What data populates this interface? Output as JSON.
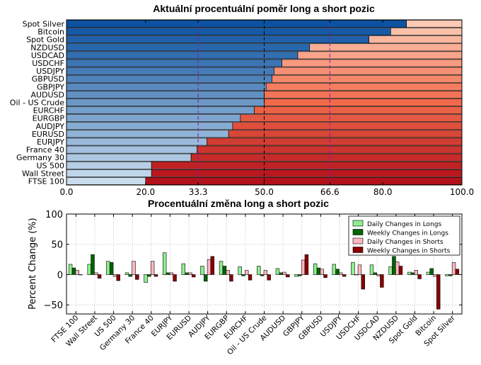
{
  "chart_data": [
    {
      "type": "bar",
      "orientation": "horizontal",
      "stacked": true,
      "title": "Aktuální procentuální poměr long a short pozic",
      "categories": [
        "Spot Silver",
        "Bitcoin",
        "Spot Gold",
        "NZDUSD",
        "USDCAD",
        "USDCHF",
        "USDJPY",
        "GBPUSD",
        "GBPJPY",
        "AUDUSD",
        "Oil - US Crude",
        "EURCHF",
        "EURGBP",
        "AUDJPY",
        "EURUSD",
        "EURJPY",
        "France 40",
        "Germany 30",
        "US 500",
        "Wall Street",
        "FTSE 100"
      ],
      "long_values": [
        86.0,
        82.0,
        76.5,
        61.5,
        58.5,
        54.5,
        52.5,
        52.0,
        50.5,
        50.0,
        50.0,
        47.5,
        44.0,
        42.0,
        41.0,
        35.5,
        33.0,
        31.5,
        21.5,
        21.5,
        20.0
      ],
      "xlim": [
        0,
        100
      ],
      "xticks": [
        "0.0",
        "20.0",
        "33.3",
        "50.0",
        "66.6",
        "80.0",
        "100.0"
      ],
      "reference_lines": [
        "33.3",
        "50.0",
        "66.6"
      ],
      "colors": {
        "long_dark": "#0d52a0",
        "long_light": "#c8dcee",
        "short_dark": "#b2101a",
        "short_mid": "#f26a4b",
        "short_light": "#fcc9b4",
        "ref_line_purple": "#7b1fa2",
        "ref_tick_purple": "#7b1fa2"
      }
    },
    {
      "type": "bar",
      "orientation": "vertical",
      "grouped": true,
      "title": "Procentuální změna long a short pozic",
      "ylabel": "Percent Change (%)",
      "ylim": [
        -65,
        100
      ],
      "yticks": [
        "100",
        "50",
        "0",
        "−50"
      ],
      "categories": [
        "FTSE 100",
        "Wall Street",
        "US 500",
        "Germany 30",
        "France 40",
        "EURJPY",
        "EURUSD",
        "AUDJPY",
        "EURGBP",
        "EURCHF",
        "Oil - US Crude",
        "AUDUSD",
        "GBPJPY",
        "GBPUSD",
        "USDJPY",
        "USDCHF",
        "USDCAD",
        "NZDUSD",
        "Spot Gold",
        "Bitcoin",
        "Spot Silver"
      ],
      "series": [
        {
          "name": "Daily Changes in Longs",
          "color": "#90ee90",
          "values": [
            17,
            17,
            22,
            3,
            -13,
            36,
            18,
            14,
            22,
            13,
            14,
            10,
            -3,
            18,
            17,
            20,
            16,
            13,
            4,
            4,
            -2
          ]
        },
        {
          "name": "Weekly Changes in Longs",
          "color": "#006400",
          "values": [
            11,
            33,
            20,
            -3,
            -3,
            3,
            3,
            -11,
            14,
            -2,
            -2,
            3,
            -2,
            11,
            9,
            0,
            3,
            30,
            3,
            10,
            -2
          ]
        },
        {
          "name": "Daily Changes in Shorts",
          "color": "#ffb6c1",
          "values": [
            7,
            3,
            -3,
            22,
            22,
            3,
            3,
            25,
            7,
            7,
            7,
            4,
            24,
            9,
            3,
            16,
            -2,
            21,
            7,
            -3,
            20
          ]
        },
        {
          "name": "Weekly Changes in Shorts",
          "color": "#8b0000",
          "values": [
            0,
            -6,
            -10,
            -8,
            -3,
            -11,
            -4,
            30,
            -11,
            -9,
            -9,
            -4,
            33,
            -5,
            -3,
            -24,
            -21,
            14,
            -7,
            -57,
            9
          ]
        }
      ]
    }
  ]
}
